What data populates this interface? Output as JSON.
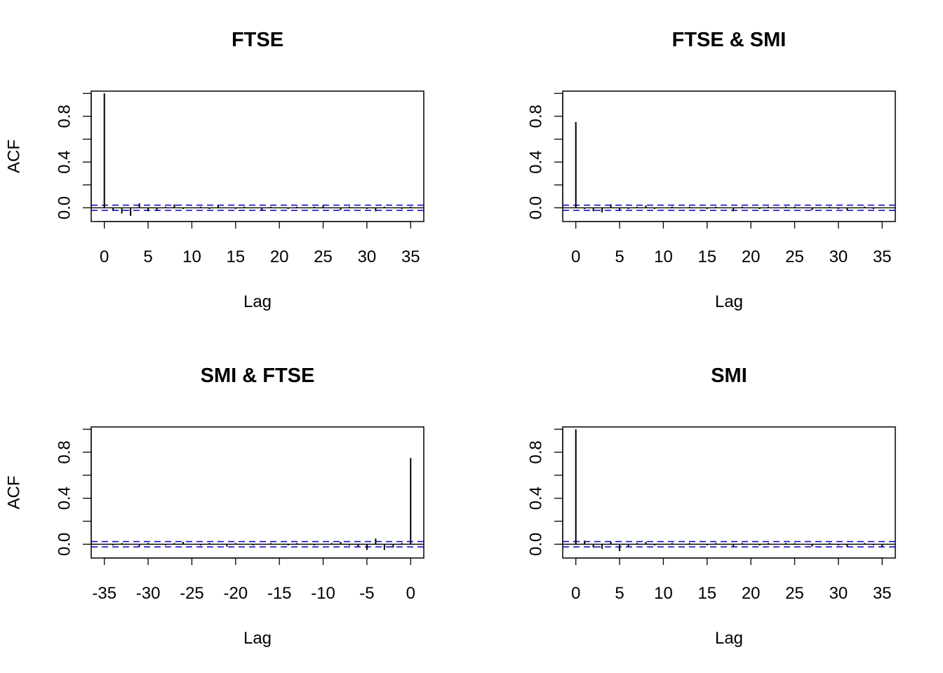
{
  "chart_data": [
    {
      "type": "bar",
      "title": "FTSE",
      "xlabel": "Lag",
      "ylabel": "ACF",
      "xlim": [
        -1.5,
        36.5
      ],
      "ylim": [
        -0.12,
        1.02
      ],
      "xticks": [
        0,
        5,
        10,
        15,
        20,
        25,
        30,
        35
      ],
      "xtick_labels": [
        "0",
        "5",
        "10",
        "15",
        "20",
        "25",
        "30",
        "35"
      ],
      "yticks": [
        0.0,
        0.2,
        0.4,
        0.6,
        0.8,
        1.0
      ],
      "ytick_labels": [
        "0.0",
        "",
        "0.4",
        "",
        "0.8",
        ""
      ],
      "ci": 0.023,
      "lags": [
        0,
        1,
        2,
        3,
        4,
        5,
        6,
        7,
        8,
        9,
        10,
        11,
        12,
        13,
        14,
        15,
        16,
        17,
        18,
        19,
        20,
        21,
        22,
        23,
        24,
        25,
        26,
        27,
        28,
        29,
        30,
        31,
        32,
        33,
        34,
        35
      ],
      "values": [
        1.0,
        -0.02,
        -0.05,
        -0.07,
        0.04,
        -0.03,
        -0.02,
        0.01,
        0.03,
        -0.01,
        0.0,
        0.01,
        -0.01,
        0.02,
        0.0,
        -0.01,
        0.01,
        0.0,
        -0.02,
        0.01,
        0.0,
        -0.01,
        0.01,
        0.0,
        0.01,
        0.02,
        0.0,
        -0.02,
        0.01,
        0.0,
        -0.01,
        -0.03,
        0.01,
        0.0,
        -0.01,
        0.01
      ]
    },
    {
      "type": "bar",
      "title": "FTSE & SMI",
      "xlabel": "Lag",
      "ylabel": "",
      "xlim": [
        -1.5,
        36.5
      ],
      "ylim": [
        -0.12,
        1.02
      ],
      "xticks": [
        0,
        5,
        10,
        15,
        20,
        25,
        30,
        35
      ],
      "xtick_labels": [
        "0",
        "5",
        "10",
        "15",
        "20",
        "25",
        "30",
        "35"
      ],
      "yticks": [
        0.0,
        0.2,
        0.4,
        0.6,
        0.8,
        1.0
      ],
      "ytick_labels": [
        "0.0",
        "",
        "0.4",
        "",
        "0.8",
        ""
      ],
      "ci": 0.023,
      "lags": [
        0,
        1,
        2,
        3,
        4,
        5,
        6,
        7,
        8,
        9,
        10,
        11,
        12,
        13,
        14,
        15,
        16,
        17,
        18,
        19,
        20,
        21,
        22,
        23,
        24,
        25,
        26,
        27,
        28,
        29,
        30,
        31,
        32,
        33,
        34,
        35
      ],
      "values": [
        0.75,
        -0.01,
        -0.03,
        -0.04,
        0.03,
        -0.02,
        -0.01,
        0.01,
        0.02,
        -0.01,
        0.0,
        0.01,
        0.0,
        0.01,
        0.0,
        -0.01,
        0.01,
        0.0,
        -0.03,
        0.01,
        0.0,
        -0.01,
        0.01,
        0.0,
        0.01,
        0.01,
        0.0,
        -0.02,
        0.0,
        0.01,
        -0.01,
        -0.02,
        0.0,
        0.01,
        -0.01,
        0.0
      ]
    },
    {
      "type": "bar",
      "title": "SMI & FTSE",
      "xlabel": "Lag",
      "ylabel": "ACF",
      "xlim": [
        -36.5,
        1.5
      ],
      "ylim": [
        -0.12,
        1.02
      ],
      "xticks": [
        -35,
        -30,
        -25,
        -20,
        -15,
        -10,
        -5,
        0
      ],
      "xtick_labels": [
        "-35",
        "-30",
        "-25",
        "-20",
        "-15",
        "-10",
        "-5",
        "0"
      ],
      "yticks": [
        0.0,
        0.2,
        0.4,
        0.6,
        0.8,
        1.0
      ],
      "ytick_labels": [
        "0.0",
        "",
        "0.4",
        "",
        "0.8",
        ""
      ],
      "ci": 0.023,
      "lags": [
        -35,
        -34,
        -33,
        -32,
        -31,
        -30,
        -29,
        -28,
        -27,
        -26,
        -25,
        -24,
        -23,
        -22,
        -21,
        -20,
        -19,
        -18,
        -17,
        -16,
        -15,
        -14,
        -13,
        -12,
        -11,
        -10,
        -9,
        -8,
        -7,
        -6,
        -5,
        -4,
        -3,
        -2,
        -1,
        0
      ],
      "values": [
        0.0,
        -0.01,
        0.01,
        0.0,
        -0.02,
        0.01,
        0.0,
        -0.01,
        0.01,
        0.02,
        0.0,
        -0.01,
        0.01,
        0.0,
        -0.02,
        0.01,
        0.0,
        -0.01,
        0.0,
        0.01,
        0.0,
        -0.01,
        0.01,
        0.0,
        -0.01,
        0.0,
        0.01,
        0.02,
        -0.01,
        -0.02,
        -0.05,
        0.05,
        -0.05,
        -0.03,
        0.01,
        0.75
      ]
    },
    {
      "type": "bar",
      "title": "SMI",
      "xlabel": "Lag",
      "ylabel": "",
      "xlim": [
        -1.5,
        36.5
      ],
      "ylim": [
        -0.12,
        1.02
      ],
      "xticks": [
        0,
        5,
        10,
        15,
        20,
        25,
        30,
        35
      ],
      "xtick_labels": [
        "0",
        "5",
        "10",
        "15",
        "20",
        "25",
        "30",
        "35"
      ],
      "yticks": [
        0.0,
        0.2,
        0.4,
        0.6,
        0.8,
        1.0
      ],
      "ytick_labels": [
        "0.0",
        "",
        "0.4",
        "",
        "0.8",
        ""
      ],
      "ci": 0.023,
      "lags": [
        0,
        1,
        2,
        3,
        4,
        5,
        6,
        7,
        8,
        9,
        10,
        11,
        12,
        13,
        14,
        15,
        16,
        17,
        18,
        19,
        20,
        21,
        22,
        23,
        24,
        25,
        26,
        27,
        28,
        29,
        30,
        31,
        32,
        33,
        34,
        35
      ],
      "values": [
        1.0,
        0.03,
        -0.03,
        -0.04,
        0.02,
        -0.06,
        -0.02,
        0.01,
        0.02,
        -0.01,
        0.0,
        0.01,
        0.0,
        0.01,
        0.0,
        -0.01,
        0.01,
        0.0,
        -0.02,
        0.01,
        0.0,
        -0.01,
        0.01,
        0.0,
        0.01,
        0.01,
        0.0,
        -0.02,
        0.0,
        0.01,
        -0.01,
        -0.02,
        0.0,
        0.01,
        -0.01,
        -0.02
      ]
    }
  ],
  "colors": {
    "spike": "#000000",
    "confidence_band": "#0000CD",
    "axis": "#000000"
  }
}
